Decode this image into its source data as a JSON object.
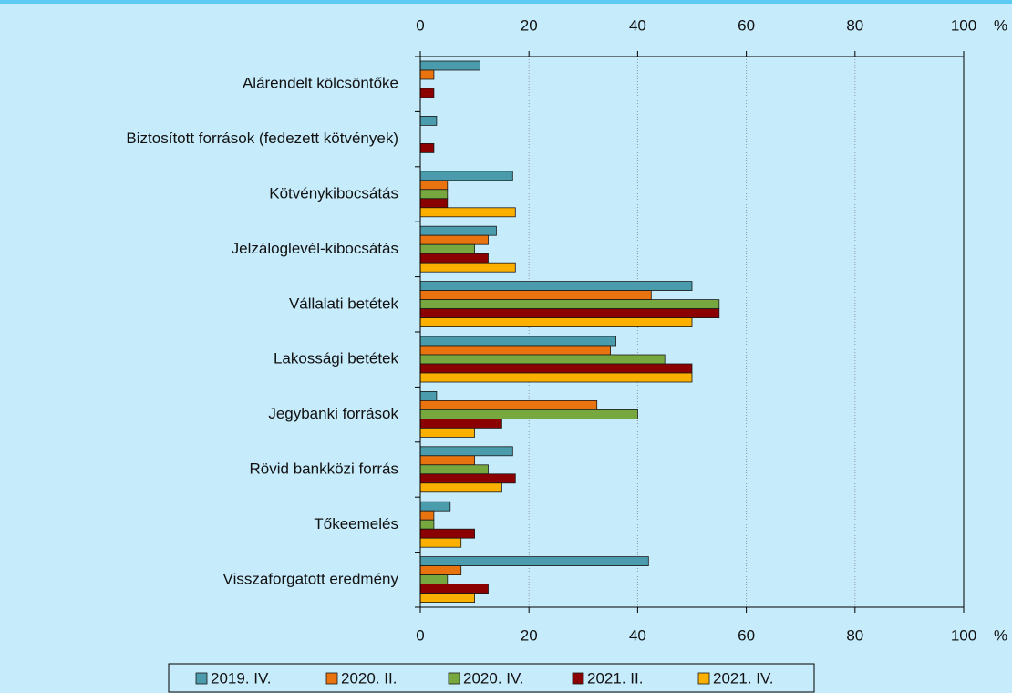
{
  "chart_data": {
    "type": "hbar",
    "categories": [
      "Alárendelt kölcsöntőke",
      "Biztosított források (fedezett kötvények)",
      "Kötvénykibocsátás",
      "Jelzáloglevél-kibocsátás",
      "Vállalati betétek",
      "Lakossági betétek",
      "Jegybanki források",
      "Rövid bankközi forrás",
      "Tőkeemelés",
      "Visszaforgatott eredmény"
    ],
    "series": [
      {
        "name": "2019. IV.",
        "color": "#4a9bab",
        "values": [
          11,
          3,
          17,
          14,
          50,
          36,
          3,
          17,
          5.5,
          42
        ]
      },
      {
        "name": "2020. II.",
        "color": "#e8730f",
        "values": [
          2.5,
          null,
          5,
          12.5,
          42.5,
          35,
          32.5,
          10,
          2.5,
          7.5
        ]
      },
      {
        "name": "2020. IV.",
        "color": "#77a840",
        "values": [
          null,
          null,
          5,
          10,
          55,
          45,
          40,
          12.5,
          2.5,
          5
        ]
      },
      {
        "name": "2021. II.",
        "color": "#8b0000",
        "values": [
          2.5,
          2.5,
          5,
          12.5,
          55,
          50,
          15,
          17.5,
          10,
          12.5
        ]
      },
      {
        "name": "2021. IV.",
        "color": "#fbb000",
        "values": [
          null,
          null,
          17.5,
          17.5,
          50,
          50,
          10,
          15,
          7.5,
          10
        ]
      }
    ],
    "xlim": [
      0,
      100
    ],
    "xticks": [
      0,
      20,
      40,
      60,
      80,
      100
    ],
    "xlabel": "%",
    "grid": true
  }
}
